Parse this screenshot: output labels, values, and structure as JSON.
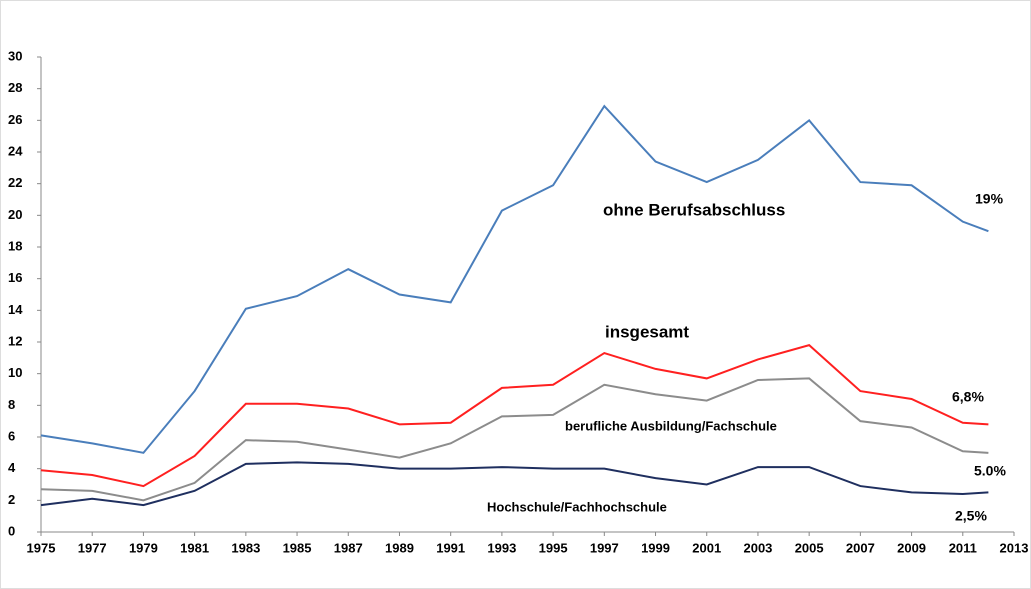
{
  "chart_data": {
    "type": "line",
    "x": [
      1975,
      1977,
      1979,
      1981,
      1983,
      1985,
      1987,
      1989,
      1991,
      1993,
      1995,
      1997,
      1999,
      2001,
      2003,
      2005,
      2007,
      2009,
      2011,
      2012
    ],
    "series": [
      {
        "name": "ohne Berufsabschluss",
        "color": "#4a7ebb",
        "end_label": "19%",
        "values": [
          6.1,
          5.6,
          5.0,
          8.9,
          14.1,
          14.9,
          16.6,
          15.0,
          14.5,
          20.3,
          21.9,
          26.9,
          23.4,
          22.1,
          23.5,
          26.0,
          22.1,
          21.9,
          19.6,
          19.0
        ]
      },
      {
        "name": "insgesamt",
        "color": "#ff2020",
        "end_label": "6,8%",
        "values": [
          3.9,
          3.6,
          2.9,
          4.8,
          8.1,
          8.1,
          7.8,
          6.8,
          6.9,
          9.1,
          9.3,
          11.3,
          10.3,
          9.7,
          10.9,
          11.8,
          8.9,
          8.4,
          6.9,
          6.8
        ]
      },
      {
        "name": "berufliche Ausbildung/Fachschule",
        "color": "#8c8c8c",
        "end_label": "5.0%",
        "values": [
          2.7,
          2.6,
          2.0,
          3.1,
          5.8,
          5.7,
          5.2,
          4.7,
          5.6,
          7.3,
          7.4,
          9.3,
          8.7,
          8.3,
          9.6,
          9.7,
          7.0,
          6.6,
          5.1,
          5.0
        ]
      },
      {
        "name": "Hochschule/Fachhochschule",
        "color": "#1f2f5f",
        "end_label": "2,5%",
        "values": [
          1.7,
          2.1,
          1.7,
          2.6,
          4.3,
          4.4,
          4.3,
          4.0,
          4.0,
          4.1,
          4.0,
          4.0,
          3.4,
          3.0,
          4.1,
          4.1,
          2.9,
          2.5,
          2.4,
          2.5
        ]
      }
    ],
    "xlim": [
      1975,
      2013
    ],
    "xticks": [
      1975,
      1977,
      1979,
      1981,
      1983,
      1985,
      1987,
      1989,
      1991,
      1993,
      1995,
      1997,
      1999,
      2001,
      2003,
      2005,
      2007,
      2009,
      2011,
      2013
    ],
    "ylim": [
      0,
      30
    ],
    "yticks": [
      0,
      2,
      4,
      6,
      8,
      10,
      12,
      14,
      16,
      18,
      20,
      22,
      24,
      26,
      28,
      30
    ],
    "grid": false
  }
}
